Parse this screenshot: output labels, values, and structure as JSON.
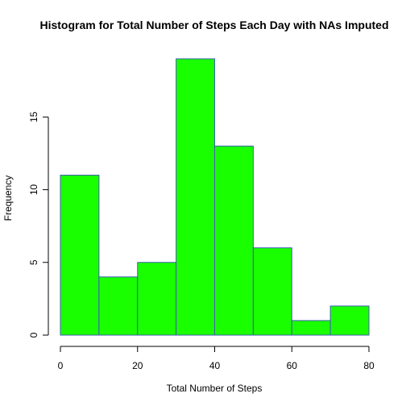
{
  "chart_data": {
    "type": "bar",
    "title": "Histogram for Total Number of Steps Each Day with NAs Imputed",
    "xlabel": "Total Number of Steps",
    "ylabel": "Frequency",
    "bins": [
      {
        "from": 0,
        "to": 10,
        "count": 11
      },
      {
        "from": 10,
        "to": 20,
        "count": 4
      },
      {
        "from": 20,
        "to": 30,
        "count": 5
      },
      {
        "from": 30,
        "to": 40,
        "count": 19
      },
      {
        "from": 40,
        "to": 50,
        "count": 13
      },
      {
        "from": 50,
        "to": 60,
        "count": 6
      },
      {
        "from": 60,
        "to": 70,
        "count": 1
      },
      {
        "from": 70,
        "to": 80,
        "count": 2
      }
    ],
    "xlim": [
      0,
      80
    ],
    "ylim": [
      0,
      19
    ],
    "x_ticks": [
      0,
      20,
      40,
      60,
      80
    ],
    "y_ticks": [
      0,
      5,
      10,
      15
    ],
    "bar_fill": "#1aff00",
    "bar_stroke": "#3b5fb0"
  }
}
